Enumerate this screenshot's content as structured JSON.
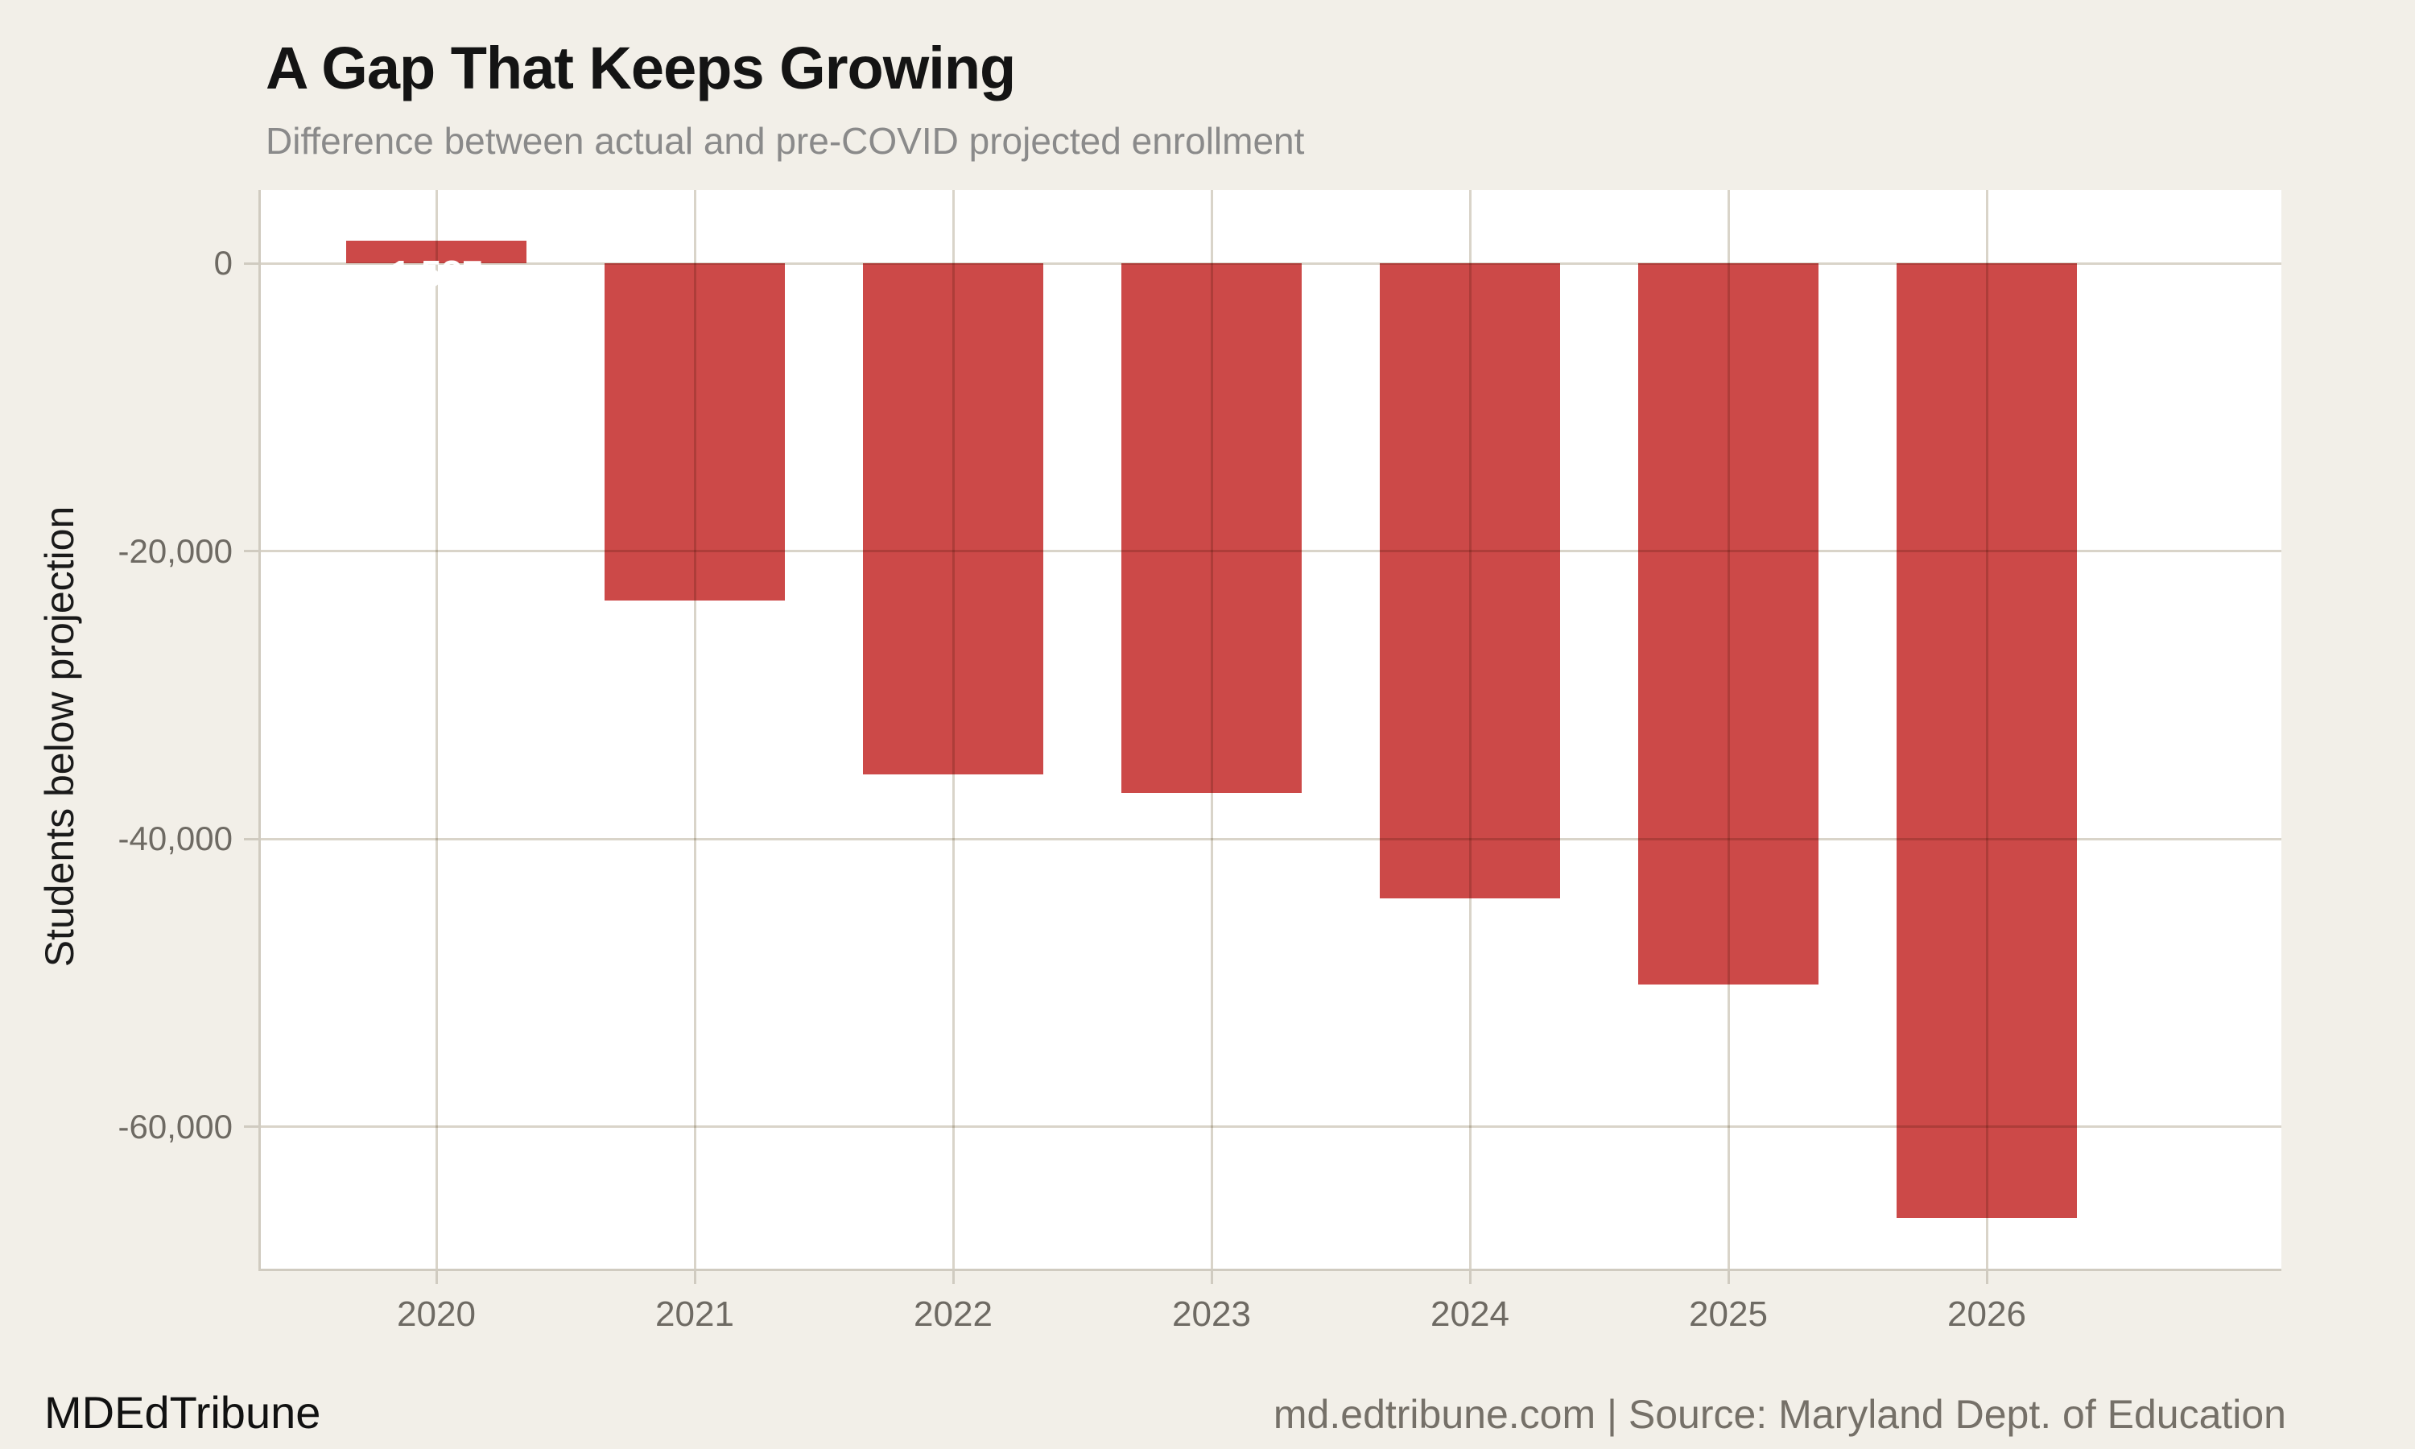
{
  "header": {
    "title": "A Gap That Keeps Growing",
    "subtitle": "Difference between actual and pre-COVID projected enrollment"
  },
  "footer": {
    "brand": "MDEdTribune",
    "attribution": "md.edtribune.com | Source: Maryland Dept. of Education"
  },
  "colors": {
    "background": "#f2efe8",
    "panel": "#ffffff",
    "bar": "#cc4948",
    "grid": "#d9d4c9",
    "axis": "#d0cbc0",
    "tick_label": "#6e6a63",
    "title": "#141414",
    "subtitle": "#8a8a8a",
    "footer": "#757068",
    "bar_label": "#ffffff"
  },
  "chart_data": {
    "type": "bar",
    "title": "A Gap That Keeps Growing",
    "subtitle": "Difference between actual and pre-COVID projected enrollment",
    "categories": [
      "2020",
      "2021",
      "2022",
      "2023",
      "2024",
      "2025",
      "2026"
    ],
    "values": [
      1587,
      -23400,
      -35500,
      -36800,
      -44100,
      -50100,
      -66300
    ],
    "bar_labels": [
      "1,587",
      "",
      "",
      "",
      "",
      "",
      ""
    ],
    "xlabel": "",
    "ylabel": "Students below projection",
    "ylim": [
      -69900,
      5100
    ],
    "yticks": {
      "values": [
        0,
        -20000,
        -40000,
        -60000
      ],
      "labels": [
        "0",
        "-20,000",
        "-40,000",
        "-60,000"
      ]
    },
    "grid": "both",
    "legend": "none"
  }
}
